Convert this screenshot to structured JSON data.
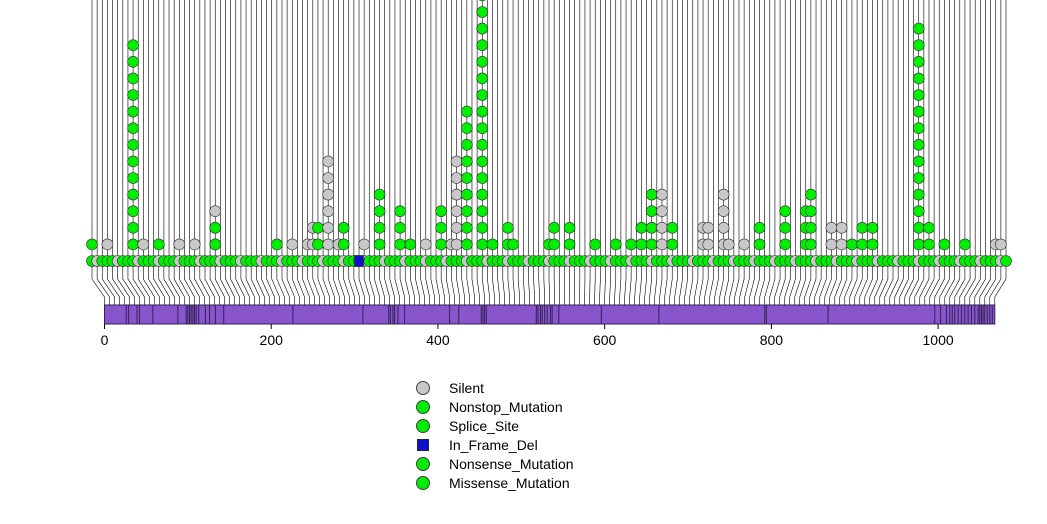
{
  "chart_data": {
    "type": "scatter",
    "subtype": "lollipop mutation plot",
    "title": "",
    "xlabel": "",
    "ylabel": "",
    "xlim": [
      0,
      1070
    ],
    "x_ticks": [
      0,
      200,
      400,
      600,
      800,
      1000
    ],
    "x_tick_labels": [
      "0",
      "200",
      "400",
      "600",
      "800",
      "1000"
    ],
    "protein_length": 1068,
    "domain_color": "#8855cc",
    "domain_boundaries": [
      26,
      29,
      39,
      42,
      58,
      88,
      98,
      100,
      102,
      104,
      106,
      108,
      110,
      113,
      121,
      126,
      133,
      143,
      226,
      310,
      341,
      343,
      346,
      348,
      352,
      360,
      414,
      425,
      452,
      454,
      456,
      458,
      518,
      520,
      523,
      525,
      528,
      531,
      535,
      537,
      545,
      596,
      665,
      792,
      794,
      868,
      996,
      1003,
      1010,
      1014,
      1017,
      1020,
      1024,
      1028,
      1032,
      1036,
      1040,
      1044,
      1048,
      1050,
      1052,
      1054,
      1056,
      1059,
      1062,
      1065
    ],
    "stacks": [
      {
        "pos": 0,
        "type": "Missense_Mutation",
        "count": 1
      },
      {
        "pos": 20,
        "type": "Silent",
        "count": 1
      },
      {
        "pos": 45,
        "type": "Missense_Mutation",
        "count": 13
      },
      {
        "pos": 60,
        "type": "Silent",
        "count": 1
      },
      {
        "pos": 75,
        "type": "Missense_Mutation",
        "count": 1
      },
      {
        "pos": 100,
        "type": "Silent",
        "count": 1
      },
      {
        "pos": 120,
        "type": "Silent",
        "count": 1
      },
      {
        "pos": 142,
        "type": "Silent",
        "count": 3
      },
      {
        "pos": 146,
        "type": "Missense_Mutation",
        "count": 2
      },
      {
        "pos": 218,
        "type": "Missense_Mutation",
        "count": 1
      },
      {
        "pos": 232,
        "type": "Silent",
        "count": 1
      },
      {
        "pos": 252,
        "type": "Silent",
        "count": 1
      },
      {
        "pos": 258,
        "type": "Silent",
        "count": 2
      },
      {
        "pos": 265,
        "type": "Missense_Mutation",
        "count": 2
      },
      {
        "pos": 278,
        "type": "Silent",
        "count": 6
      },
      {
        "pos": 288,
        "type": "Silent",
        "count": 1
      },
      {
        "pos": 295,
        "type": "Missense_Mutation",
        "count": 2
      },
      {
        "pos": 318,
        "type": "Silent",
        "count": 1
      },
      {
        "pos": 338,
        "type": "Missense_Mutation",
        "count": 4
      },
      {
        "pos": 357,
        "type": "Missense_Mutation",
        "count": 3
      },
      {
        "pos": 372,
        "type": "Missense_Mutation",
        "count": 1
      },
      {
        "pos": 388,
        "type": "Silent",
        "count": 1
      },
      {
        "pos": 408,
        "type": "Missense_Mutation",
        "count": 3
      },
      {
        "pos": 422,
        "type": "Silent",
        "count": 1
      },
      {
        "pos": 428,
        "type": "Silent",
        "count": 6
      },
      {
        "pos": 440,
        "type": "Missense_Mutation",
        "count": 9
      },
      {
        "pos": 457,
        "type": "Missense_Mutation",
        "count": 16
      },
      {
        "pos": 470,
        "type": "Missense_Mutation",
        "count": 1
      },
      {
        "pos": 485,
        "type": "Missense_Mutation",
        "count": 2
      },
      {
        "pos": 492,
        "type": "Missense_Mutation",
        "count": 1
      },
      {
        "pos": 535,
        "type": "Missense_Mutation",
        "count": 1
      },
      {
        "pos": 542,
        "type": "Missense_Mutation",
        "count": 2
      },
      {
        "pos": 555,
        "type": "Missense_Mutation",
        "count": 2
      },
      {
        "pos": 585,
        "type": "Missense_Mutation",
        "count": 1
      },
      {
        "pos": 612,
        "type": "Missense_Mutation",
        "count": 1
      },
      {
        "pos": 627,
        "type": "Missense_Mutation",
        "count": 1
      },
      {
        "pos": 642,
        "type": "Missense_Mutation",
        "count": 2
      },
      {
        "pos": 652,
        "type": "Missense_Mutation",
        "count": 4
      },
      {
        "pos": 667,
        "type": "Silent",
        "count": 4
      },
      {
        "pos": 680,
        "type": "Missense_Mutation",
        "count": 2
      },
      {
        "pos": 712,
        "type": "Silent",
        "count": 2
      },
      {
        "pos": 722,
        "type": "Silent",
        "count": 2
      },
      {
        "pos": 735,
        "type": "Silent",
        "count": 4
      },
      {
        "pos": 745,
        "type": "Silent",
        "count": 1
      },
      {
        "pos": 762,
        "type": "Silent",
        "count": 1
      },
      {
        "pos": 778,
        "type": "Missense_Mutation",
        "count": 2
      },
      {
        "pos": 808,
        "type": "Missense_Mutation",
        "count": 3
      },
      {
        "pos": 832,
        "type": "Missense_Mutation",
        "count": 3
      },
      {
        "pos": 840,
        "type": "Missense_Mutation",
        "count": 4
      },
      {
        "pos": 862,
        "type": "Silent",
        "count": 2
      },
      {
        "pos": 875,
        "type": "Silent",
        "count": 2
      },
      {
        "pos": 885,
        "type": "Missense_Mutation",
        "count": 1
      },
      {
        "pos": 902,
        "type": "Missense_Mutation",
        "count": 2
      },
      {
        "pos": 910,
        "type": "Missense_Mutation",
        "count": 2
      },
      {
        "pos": 968,
        "type": "Missense_Mutation",
        "count": 14
      },
      {
        "pos": 975,
        "type": "Missense_Mutation",
        "count": 2
      },
      {
        "pos": 995,
        "type": "Missense_Mutation",
        "count": 1
      },
      {
        "pos": 1018,
        "type": "Missense_Mutation",
        "count": 1
      },
      {
        "pos": 1055,
        "type": "Silent",
        "count": 1
      },
      {
        "pos": 1062,
        "type": "Silent",
        "count": 1
      }
    ],
    "in_frame_del_positions": [
      310
    ],
    "legend": [
      {
        "label": "Silent",
        "shape": "circle",
        "color": "#c8c8c8"
      },
      {
        "label": "Nonstop_Mutation",
        "shape": "circle",
        "color": "#00ee00"
      },
      {
        "label": "Splice_Site",
        "shape": "circle",
        "color": "#00ee00"
      },
      {
        "label": "In_Frame_Del",
        "shape": "square",
        "color": "#1111cc"
      },
      {
        "label": "Nonsense_Mutation",
        "shape": "circle",
        "color": "#00ee00"
      },
      {
        "label": "Missense_Mutation",
        "shape": "circle",
        "color": "#00ee00"
      }
    ]
  }
}
